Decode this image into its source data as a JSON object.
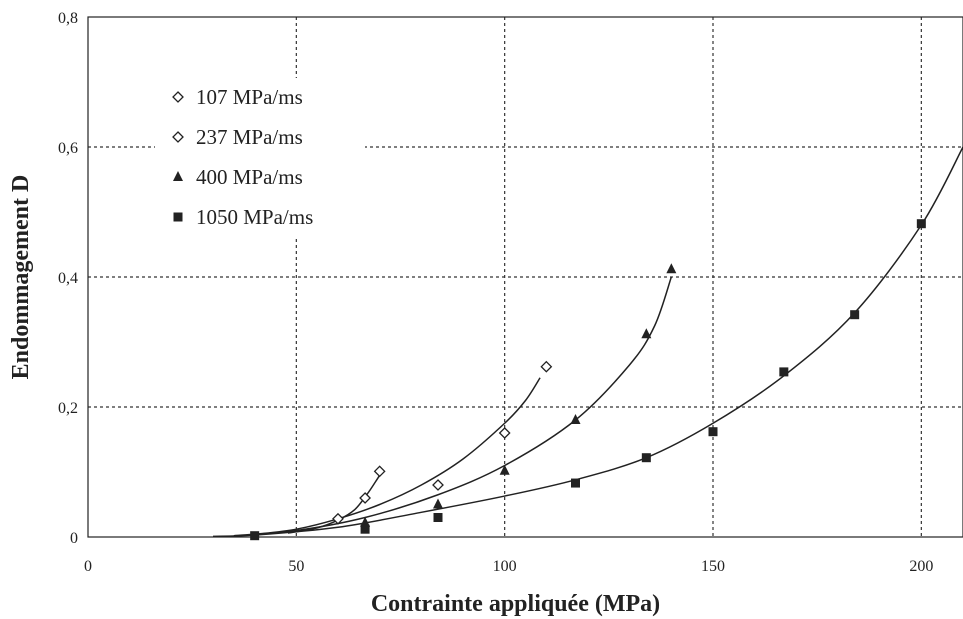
{
  "chart_data": {
    "type": "scatter",
    "title": "",
    "xlabel": "Contrainte appliquée (MPa)",
    "ylabel": "Endommagement D",
    "xlim": [
      0,
      210
    ],
    "ylim": [
      0,
      0.8
    ],
    "x_ticks": [
      0,
      50,
      100,
      150,
      200
    ],
    "x_tick_labels": [
      "0",
      "50",
      "100",
      "150",
      "200"
    ],
    "y_ticks": [
      0,
      0.2,
      0.4,
      0.6,
      0.8
    ],
    "y_tick_labels": [
      "0",
      "0,2",
      "0,4",
      "0,6",
      "0,8"
    ],
    "grid": true,
    "legend_position": "top-left",
    "series": [
      {
        "name": "107 MPa/ms",
        "marker": "diamond-open",
        "color": "#222222",
        "points": [
          [
            60,
            0.028
          ],
          [
            66.5,
            0.06
          ],
          [
            70,
            0.101
          ]
        ],
        "fit": [
          [
            48,
            0.006
          ],
          [
            55,
            0.014
          ],
          [
            60,
            0.026
          ],
          [
            64,
            0.042
          ],
          [
            67,
            0.066
          ],
          [
            69,
            0.085
          ],
          [
            70.5,
            0.1
          ]
        ]
      },
      {
        "name": "237 MPa/ms",
        "marker": "diamond-open",
        "color": "#222222",
        "points": [
          [
            84,
            0.08
          ],
          [
            100,
            0.16
          ],
          [
            110,
            0.262
          ]
        ],
        "fit": [
          [
            40,
            0.004
          ],
          [
            50,
            0.012
          ],
          [
            60,
            0.028
          ],
          [
            70,
            0.05
          ],
          [
            80,
            0.08
          ],
          [
            90,
            0.12
          ],
          [
            100,
            0.175
          ],
          [
            105,
            0.21
          ],
          [
            108.5,
            0.245
          ]
        ]
      },
      {
        "name": "400 MPa/ms",
        "marker": "triangle-filled",
        "color": "#222222",
        "points": [
          [
            66.5,
            0.022
          ],
          [
            84,
            0.05
          ],
          [
            100,
            0.102
          ],
          [
            117,
            0.18
          ],
          [
            134,
            0.312
          ],
          [
            140,
            0.412
          ]
        ],
        "fit": [
          [
            35,
            0.002
          ],
          [
            50,
            0.01
          ],
          [
            66.5,
            0.03
          ],
          [
            84,
            0.065
          ],
          [
            100,
            0.11
          ],
          [
            117,
            0.18
          ],
          [
            130,
            0.265
          ],
          [
            136,
            0.325
          ],
          [
            140,
            0.4
          ]
        ]
      },
      {
        "name": "1050 MPa/ms",
        "marker": "square-filled",
        "color": "#222222",
        "points": [
          [
            40,
            0.002
          ],
          [
            66.5,
            0.012
          ],
          [
            84,
            0.03
          ],
          [
            117,
            0.083
          ],
          [
            134,
            0.122
          ],
          [
            150,
            0.162
          ],
          [
            167,
            0.254
          ],
          [
            184,
            0.342
          ],
          [
            200,
            0.482
          ]
        ],
        "fit": [
          [
            30,
            0.001
          ],
          [
            40,
            0.003
          ],
          [
            60,
            0.015
          ],
          [
            80,
            0.038
          ],
          [
            100,
            0.063
          ],
          [
            117,
            0.088
          ],
          [
            134,
            0.122
          ],
          [
            150,
            0.175
          ],
          [
            167,
            0.248
          ],
          [
            184,
            0.345
          ],
          [
            200,
            0.48
          ],
          [
            210,
            0.6
          ]
        ]
      }
    ]
  }
}
